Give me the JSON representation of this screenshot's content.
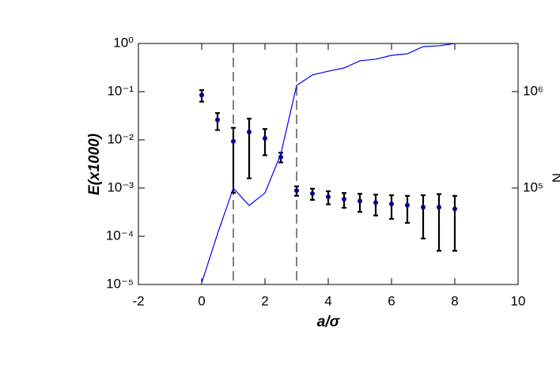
{
  "chart_data": {
    "type": "scatter-line",
    "xlabel": "a/σ",
    "ylabel": "E(x1000)",
    "y2label": "N",
    "x": [
      0,
      0.5,
      1,
      1.5,
      2,
      2.5,
      3,
      3.5,
      4,
      4.5,
      5,
      5.5,
      6,
      6.5,
      7,
      7.5,
      8
    ],
    "series": [
      {
        "kind": "errorbar",
        "color": "#00008b",
        "errcolor": "#000000",
        "values": [
          0.085,
          0.026,
          0.0093,
          0.0146,
          0.0108,
          0.0044,
          0.00089,
          0.00077,
          0.00066,
          0.00059,
          0.00054,
          0.0005,
          0.00047,
          0.00044,
          0.0004,
          0.0004,
          0.00037
        ],
        "errors": [
          0.023,
          0.01,
          0.0085,
          0.013,
          0.006,
          0.001,
          0.0002,
          0.0002,
          0.0002,
          0.0002,
          0.00022,
          0.00023,
          0.00024,
          0.00025,
          0.00031,
          0.00035,
          0.00032
        ]
      },
      {
        "kind": "line",
        "axis": "y2",
        "color": "#0000ff",
        "values": [
          10400,
          33500,
          100000,
          66000,
          89000,
          225000,
          1160000,
          1490000,
          1630000,
          1760000,
          2090000,
          2170000,
          2380000,
          2470000,
          2930000,
          2990000,
          3160000
        ]
      }
    ],
    "vlines": [
      1,
      3
    ],
    "xlim": [
      -2,
      10
    ],
    "xticks": [
      -2,
      0,
      2,
      4,
      6,
      8,
      10
    ],
    "ylim": [
      1e-05,
      1
    ],
    "yticks": [
      {
        "value": 1,
        "label": "10⁰"
      },
      {
        "value": 0.1,
        "label": "10⁻¹"
      },
      {
        "value": 0.01,
        "label": "10⁻²"
      },
      {
        "value": 0.001,
        "label": "10⁻³"
      },
      {
        "value": 0.0001,
        "label": "10⁻⁴"
      },
      {
        "value": 1e-05,
        "label": "10⁻⁵"
      }
    ],
    "ylog": true,
    "y2lim": [
      10000,
      3160000
    ],
    "y2ticks": [
      {
        "value": 100000,
        "label": "10⁵"
      },
      {
        "value": 1000000,
        "label": "10⁶"
      }
    ],
    "y2log": true
  }
}
